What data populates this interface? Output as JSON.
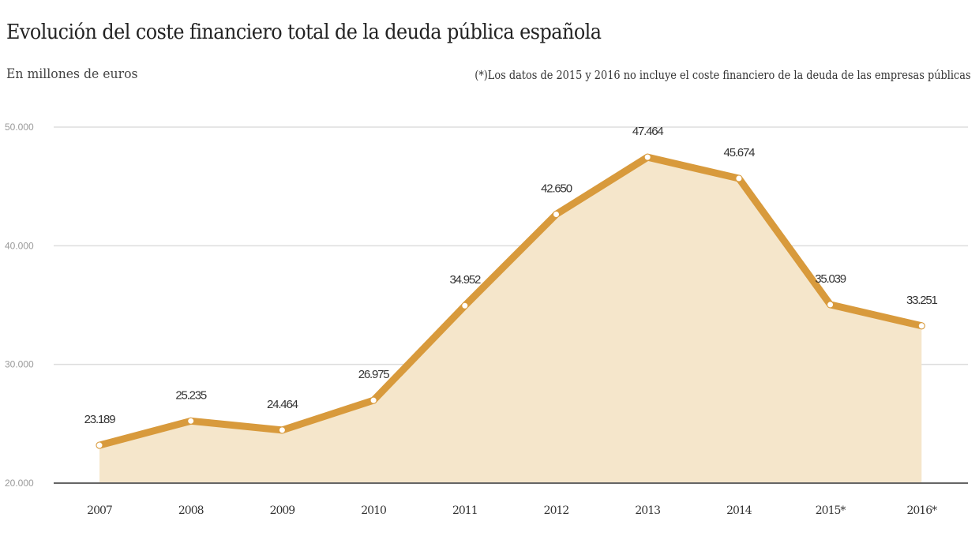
{
  "header": {
    "title": "Evolución del coste financiero total de la deuda pública española",
    "subtitle": "En millones de euros",
    "note": "(*)Los datos de 2015 y 2016 no incluye el coste financiero de la deuda de las empresas públicas"
  },
  "colors": {
    "line": "#D89A3C",
    "area": "#F5E6CB",
    "marker_fill": "#FFFFFF",
    "grid": "#DDDDDD",
    "baseline": "#666666"
  },
  "chart_data": {
    "type": "area",
    "title": "Evolución del coste financiero total de la deuda pública española",
    "subtitle": "En millones de euros",
    "xlabel": "",
    "ylabel": "",
    "categories": [
      "2007",
      "2008",
      "2009",
      "2010",
      "2011",
      "2012",
      "2013",
      "2014",
      "2015*",
      "2016*"
    ],
    "values": [
      23189,
      25235,
      24464,
      26975,
      34952,
      42650,
      47464,
      45674,
      35039,
      33251
    ],
    "data_labels": [
      "23.189",
      "25.235",
      "24.464",
      "26.975",
      "34.952",
      "42.650",
      "47.464",
      "45.674",
      "35.039",
      "33.251"
    ],
    "ylim": [
      20000,
      50000
    ],
    "yticks": [
      20000,
      30000,
      40000,
      50000
    ],
    "ytick_labels": [
      "20.000",
      "30.000",
      "40.000",
      "50.000"
    ],
    "grid": true,
    "legend": "none",
    "annotations": [
      "(*)Los datos de 2015 y 2016 no incluye el coste financiero de la deuda de las empresas públicas"
    ]
  }
}
